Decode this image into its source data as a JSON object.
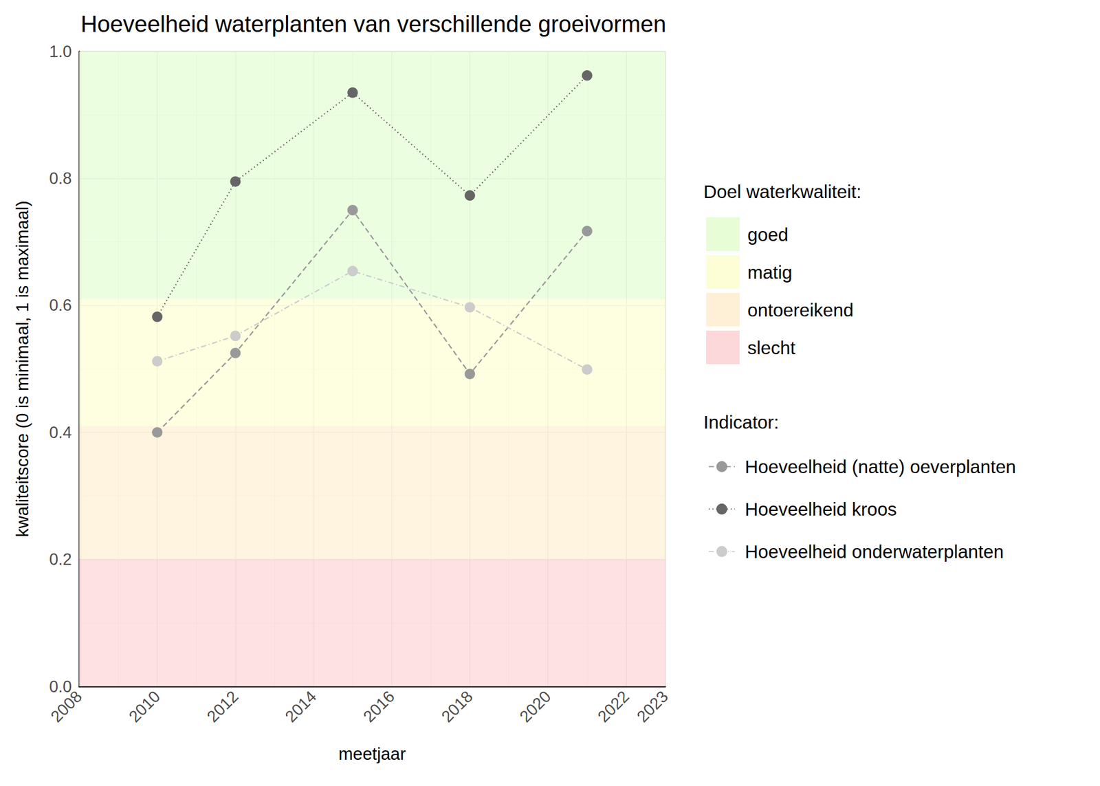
{
  "chart_data": {
    "type": "line",
    "title": "Hoeveelheid waterplanten van verschillende groeivormen",
    "x_label": "meetjaar",
    "y_label": "kwaliteitscore (0 is minimaal, 1 is maximaal)",
    "x": [
      2010,
      2012,
      2015,
      2018,
      2021
    ],
    "xlim": [
      2008,
      2023
    ],
    "xticks": [
      2008,
      2010,
      2012,
      2014,
      2016,
      2018,
      2020,
      2022
    ],
    "ylim": [
      0,
      1
    ],
    "yticks": [
      {
        "value": 0,
        "label": "0.0"
      },
      0.2,
      0.4,
      0.6,
      0.8,
      {
        "value": 1,
        "label": "1.0"
      }
    ],
    "grid": true,
    "legend": "right",
    "bands_title": "Doel waterkwaliteit:",
    "bands": [
      {
        "name": "goed",
        "from": 0.61,
        "to": 1,
        "color": "#e6fdd6"
      },
      {
        "name": "matig",
        "from": 0.41,
        "to": 0.61,
        "color": "#fefed6"
      },
      {
        "name": "ontoereikend",
        "from": 0.2,
        "to": 0.41,
        "color": "#fdf0d6"
      },
      {
        "name": "slecht",
        "from": 0,
        "to": 0.2,
        "color": "#fdd8da"
      }
    ],
    "series_title": "Indicator:",
    "series": [
      {
        "name": "Hoeveelheid (natte) oeverplanten",
        "color": "#999999",
        "line_style": "dashed",
        "marker": "circle",
        "values": [
          0.4,
          0.525,
          0.75,
          0.492,
          0.717
        ]
      },
      {
        "name": "Hoeveelheid kroos",
        "color": "#666666",
        "line_style": "dotted",
        "marker": "circle",
        "values": [
          0.582,
          0.795,
          0.935,
          0.773,
          0.962
        ]
      },
      {
        "name": "Hoeveelheid onderwaterplanten",
        "color": "#cccccc",
        "line_style": "dashdot",
        "marker": "circle",
        "values": [
          0.512,
          0.552,
          0.654,
          0.597,
          0.499
        ]
      }
    ]
  }
}
